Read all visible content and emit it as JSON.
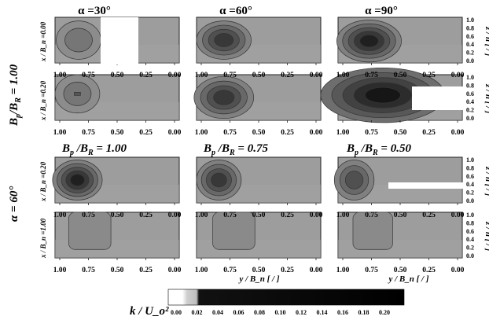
{
  "top_section": {
    "col_titles": [
      "α =30°",
      "α =60°",
      "α =90°"
    ],
    "group_label": "B_p/B_R = 1.00",
    "group_label_parts": {
      "b1": "B",
      "p": "p",
      "slash": "/",
      "b2": "B",
      "r": "R",
      "val": " = 1.00"
    },
    "row_labels": [
      "x / B_n =0.00",
      "x / B_n =0.20"
    ]
  },
  "bottom_section": {
    "col_titles": [
      "B_p/B_R = 1.00",
      "B_p/B_R = 0.75",
      "B_p/B_R = 0.50"
    ],
    "col_title_parts": [
      {
        "b1": "B",
        "p": "p",
        "slash": " /",
        "b2": "B",
        "r": "R",
        "val": " = 1.00"
      },
      {
        "b1": "B",
        "p": "p",
        "slash": " /",
        "b2": "B",
        "r": "R",
        "val": " = 0.75"
      },
      {
        "b1": "B",
        "p": "p",
        "slash": " /",
        "b2": "B",
        "r": "R",
        "val": " = 0.50"
      }
    ],
    "group_label": "α = 60°",
    "row_labels": [
      "x / B_n =0.20",
      "x / B_n =1.00"
    ]
  },
  "axes": {
    "x_ticks": [
      "1.00",
      "0.75",
      "0.50",
      "0.25",
      "0.00"
    ],
    "x_label": "y / B_n [ / ]",
    "z_ticks": [
      "1.0",
      "0.8",
      "0.6",
      "0.4",
      "0.2",
      "0.0"
    ],
    "z_label": "z / h [ / ]"
  },
  "colorbar": {
    "label": "k / U_o²",
    "ticks": [
      "0.00",
      "0.02",
      "0.04",
      "0.06",
      "0.08",
      "0.10",
      "0.12",
      "0.14",
      "0.16",
      "0.18",
      "0.20"
    ],
    "colors": [
      "#ffffff",
      "#d0d0d0",
      "#b0b0b0",
      "#000000"
    ]
  }
}
